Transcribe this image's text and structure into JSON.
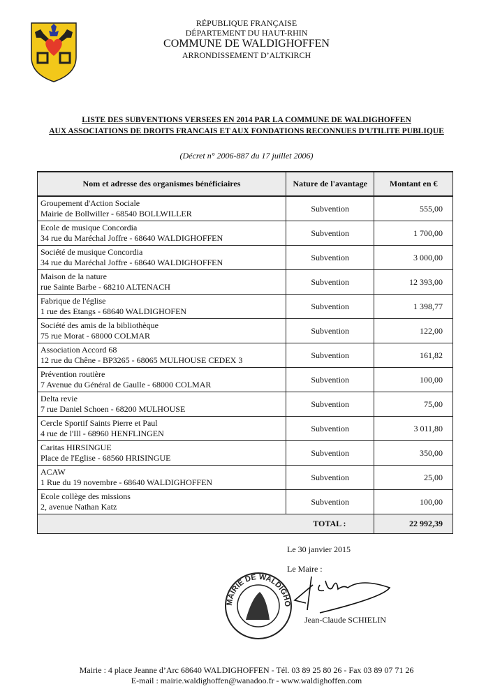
{
  "header": {
    "logo": "coat-of-arms-waldighoffen",
    "line1": "RÉPUBLIQUE FRANÇAISE",
    "line2": "DÉPARTEMENT DU HAUT-RHIN",
    "line3": "COMMUNE DE WALDIGHOFFEN",
    "line4": "ARRONDISSEMENT D’ALTKIRCH"
  },
  "title": {
    "line1": "LISTE DES SUBVENTIONS VERSEES EN 2014 PAR LA COMMUNE DE WALDIGHOFFEN",
    "line2": "AUX ASSOCIATIONS DE DROITS FRANCAIS ET AUX FONDATIONS RECONNUES D'UTILITE PUBLIQUE",
    "decree": "(Décret n° 2006-887 du 17 juillet 2006)"
  },
  "table": {
    "columns": [
      "Nom et adresse des organismes bénéficiaires",
      "Nature de l'avantage",
      "Montant en €"
    ],
    "rows": [
      {
        "name": "Groupement d'Action Sociale",
        "address": "Mairie de Bollwiller - 68540 BOLLWILLER",
        "nature": "Subvention",
        "amount": "555,00"
      },
      {
        "name": "Ecole de musique Concordia",
        "address": "34 rue du Maréchal Joffre - 68640 WALDIGHOFFEN",
        "nature": "Subvention",
        "amount": "1 700,00"
      },
      {
        "name": "Société de musique Concordia",
        "address": "34 rue du Maréchal Joffre - 68640 WALDIGHOFFEN",
        "nature": "Subvention",
        "amount": "3 000,00"
      },
      {
        "name": "Maison de la nature",
        "address": "rue Sainte Barbe - 68210 ALTENACH",
        "nature": "Subvention",
        "amount": "12 393,00"
      },
      {
        "name": "Fabrique de l'église",
        "address": "1 rue des Etangs - 68640 WALDIGHOFEN",
        "nature": "Subvention",
        "amount": "1 398,77"
      },
      {
        "name": "Société des amis de la bibliothèque",
        "address": "75 rue Morat - 68000 COLMAR",
        "nature": "Subvention",
        "amount": "122,00"
      },
      {
        "name": "Association Accord 68",
        "address": "12 rue du Chêne - BP3265 - 68065 MULHOUSE CEDEX 3",
        "nature": "Subvention",
        "amount": "161,82"
      },
      {
        "name": "Prévention routière",
        "address": "7 Avenue du Général de Gaulle - 68000 COLMAR",
        "nature": "Subvention",
        "amount": "100,00"
      },
      {
        "name": "Delta revie",
        "address": "7 rue Daniel Schoen - 68200 MULHOUSE",
        "nature": "Subvention",
        "amount": "75,00"
      },
      {
        "name": "Cercle Sportif Saints Pierre et Paul",
        "address": "4 rue de l'Ill - 68960 HENFLINGEN",
        "nature": "Subvention",
        "amount": "3 011,80"
      },
      {
        "name": "Caritas HIRSINGUE",
        "address": "Place de l'Eglise - 68560 HRISINGUE",
        "nature": "Subvention",
        "amount": "350,00"
      },
      {
        "name": "ACAW",
        "address": "1 Rue du 19 novembre - 68640 WALDIGHOFFEN",
        "nature": "Subvention",
        "amount": "25,00"
      },
      {
        "name": "Ecole collège des missions",
        "address": "2, avenue Nathan Katz",
        "nature": "Subvention",
        "amount": "100,00"
      }
    ],
    "total_label": "TOTAL :",
    "total_value": "22 992,39"
  },
  "signature": {
    "date": "Le 30 janvier 2015",
    "role": "Le Maire :",
    "name": "Jean-Claude SCHIELIN",
    "stamp_text": "MAIRIE DE WALDIGHOFFEN (HAUT-RHIN)"
  },
  "footer": {
    "line1": "Mairie : 4 place Jeanne d’Arc 68640 WALDIGHOFFEN - Tél. 03 89 25 80 26 - Fax 03 89 07 71 26",
    "line2": "E-mail : mairie.waldighoffen@wanadoo.fr - www.waldighoffen.com"
  }
}
